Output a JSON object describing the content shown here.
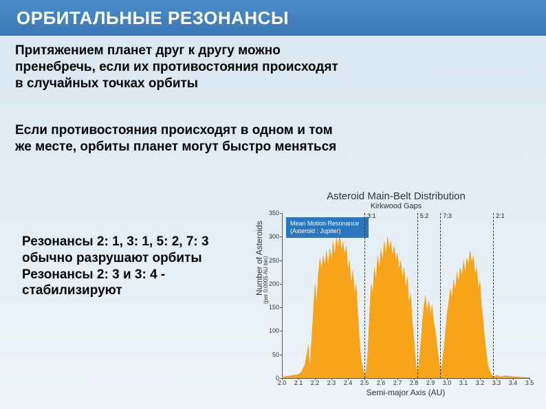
{
  "slide": {
    "title": "ОРБИТАЛЬНЫЕ РЕЗОНАНСЫ",
    "para1": "Притяжением планет друг к другу можно пренебречь, если их противостояния происходят в случайных точках орбиты",
    "para2": "Если противостояния происходят в одном и том же месте, орбиты планет могут быстро меняться",
    "para3": "Резонансы 2: 1, 3: 1, 5: 2, 7: 3 обычно разрушают орбиты\nРезонансы 2: 3 и 3: 4 - стабилизируют",
    "background_top": "#d9e6f0",
    "background_bottom": "#eef4f8",
    "title_bg_top": "#4e8cc9",
    "title_bg_bottom": "#3a78b5"
  },
  "chart": {
    "type": "area",
    "title": "Asteroid Main-Belt Distribution",
    "subtitle": "Kirkwood Gaps",
    "ylabel": "Number of Asteroids",
    "ylabel_sub": "(per 0.0005 AU bin)",
    "xlabel": "Semi-major Axis (AU)",
    "xlim": [
      2.0,
      3.5
    ],
    "ylim": [
      0,
      350
    ],
    "xtick_step": 0.1,
    "ytick_step": 50,
    "fill_color": "#f7a41a",
    "line_color": "#f7a41a",
    "grid_line_color": "#cccccc",
    "axis_color": "#555555",
    "background_color": "transparent",
    "title_fontsize": 15,
    "subtitle_fontsize": 11,
    "label_fontsize": 12,
    "tick_fontsize": 9,
    "legend": {
      "text_line1": "Mean Motion Resonance",
      "text_line2": "(Asteroid : Jupiter)",
      "bg": "#2a77c0",
      "color": "#ffffff"
    },
    "resonances": [
      {
        "label": "3:1",
        "x": 2.5
      },
      {
        "label": "5:2",
        "x": 2.82
      },
      {
        "label": "7:3",
        "x": 2.96
      },
      {
        "label": "2:1",
        "x": 3.28
      }
    ],
    "resonance_dash": "4 3",
    "resonance_color": "#333333",
    "data": [
      [
        2.0,
        2
      ],
      [
        2.05,
        5
      ],
      [
        2.1,
        8
      ],
      [
        2.12,
        14
      ],
      [
        2.14,
        30
      ],
      [
        2.16,
        70
      ],
      [
        2.17,
        25
      ],
      [
        2.19,
        140
      ],
      [
        2.2,
        200
      ],
      [
        2.21,
        160
      ],
      [
        2.22,
        220
      ],
      [
        2.23,
        255
      ],
      [
        2.24,
        230
      ],
      [
        2.25,
        260
      ],
      [
        2.26,
        240
      ],
      [
        2.27,
        270
      ],
      [
        2.28,
        240
      ],
      [
        2.29,
        275
      ],
      [
        2.3,
        250
      ],
      [
        2.31,
        290
      ],
      [
        2.32,
        260
      ],
      [
        2.33,
        300
      ],
      [
        2.34,
        275
      ],
      [
        2.35,
        305
      ],
      [
        2.36,
        270
      ],
      [
        2.37,
        290
      ],
      [
        2.38,
        260
      ],
      [
        2.39,
        280
      ],
      [
        2.4,
        230
      ],
      [
        2.41,
        250
      ],
      [
        2.42,
        200
      ],
      [
        2.43,
        230
      ],
      [
        2.44,
        175
      ],
      [
        2.45,
        200
      ],
      [
        2.46,
        135
      ],
      [
        2.47,
        80
      ],
      [
        2.48,
        40
      ],
      [
        2.49,
        20
      ],
      [
        2.5,
        8
      ],
      [
        2.51,
        12
      ],
      [
        2.52,
        55
      ],
      [
        2.53,
        130
      ],
      [
        2.54,
        200
      ],
      [
        2.55,
        180
      ],
      [
        2.56,
        235
      ],
      [
        2.57,
        210
      ],
      [
        2.58,
        260
      ],
      [
        2.59,
        230
      ],
      [
        2.6,
        275
      ],
      [
        2.61,
        250
      ],
      [
        2.62,
        290
      ],
      [
        2.63,
        265
      ],
      [
        2.64,
        300
      ],
      [
        2.65,
        275
      ],
      [
        2.66,
        290
      ],
      [
        2.67,
        260
      ],
      [
        2.68,
        280
      ],
      [
        2.69,
        250
      ],
      [
        2.7,
        265
      ],
      [
        2.71,
        230
      ],
      [
        2.72,
        250
      ],
      [
        2.73,
        210
      ],
      [
        2.74,
        235
      ],
      [
        2.75,
        190
      ],
      [
        2.76,
        215
      ],
      [
        2.77,
        160
      ],
      [
        2.78,
        180
      ],
      [
        2.79,
        120
      ],
      [
        2.8,
        80
      ],
      [
        2.81,
        40
      ],
      [
        2.82,
        12
      ],
      [
        2.83,
        30
      ],
      [
        2.84,
        70
      ],
      [
        2.85,
        115
      ],
      [
        2.86,
        155
      ],
      [
        2.87,
        175
      ],
      [
        2.88,
        140
      ],
      [
        2.89,
        165
      ],
      [
        2.9,
        135
      ],
      [
        2.91,
        155
      ],
      [
        2.92,
        120
      ],
      [
        2.93,
        100
      ],
      [
        2.94,
        70
      ],
      [
        2.95,
        40
      ],
      [
        2.96,
        15
      ],
      [
        2.97,
        30
      ],
      [
        2.98,
        60
      ],
      [
        2.99,
        95
      ],
      [
        3.0,
        135
      ],
      [
        3.01,
        160
      ],
      [
        3.02,
        190
      ],
      [
        3.03,
        170
      ],
      [
        3.04,
        210
      ],
      [
        3.05,
        185
      ],
      [
        3.06,
        225
      ],
      [
        3.07,
        205
      ],
      [
        3.08,
        235
      ],
      [
        3.09,
        215
      ],
      [
        3.1,
        250
      ],
      [
        3.11,
        225
      ],
      [
        3.12,
        255
      ],
      [
        3.13,
        240
      ],
      [
        3.14,
        270
      ],
      [
        3.15,
        245
      ],
      [
        3.16,
        260
      ],
      [
        3.17,
        220
      ],
      [
        3.18,
        235
      ],
      [
        3.19,
        190
      ],
      [
        3.2,
        205
      ],
      [
        3.21,
        150
      ],
      [
        3.22,
        120
      ],
      [
        3.23,
        80
      ],
      [
        3.24,
        50
      ],
      [
        3.25,
        25
      ],
      [
        3.26,
        15
      ],
      [
        3.27,
        8
      ],
      [
        3.28,
        3
      ],
      [
        3.29,
        4
      ],
      [
        3.3,
        6
      ],
      [
        3.31,
        5
      ],
      [
        3.32,
        4
      ],
      [
        3.33,
        3
      ],
      [
        3.35,
        5
      ],
      [
        3.38,
        4
      ],
      [
        3.4,
        3
      ],
      [
        3.45,
        2
      ],
      [
        3.5,
        1
      ]
    ]
  }
}
